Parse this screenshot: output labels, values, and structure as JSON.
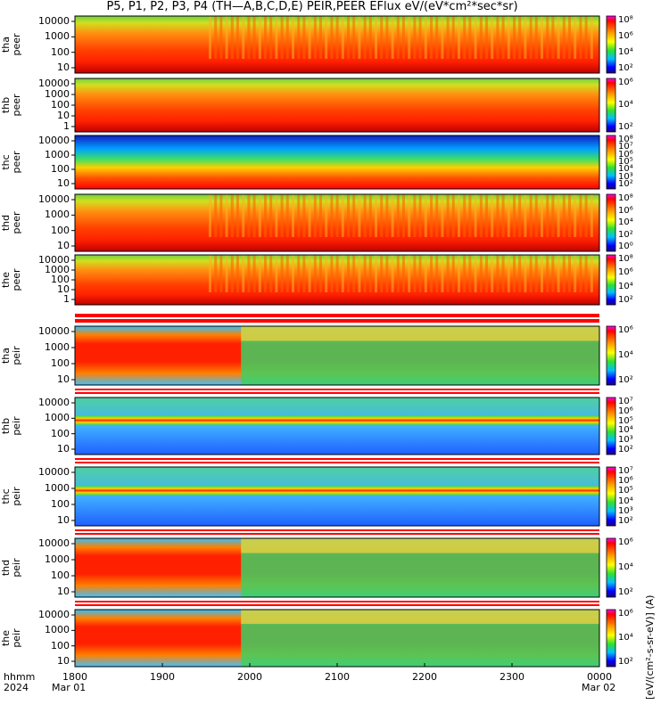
{
  "title": "P5, P1, P2, P3, P4 (TH—A,B,C,D,E) PEIR,PEER EFlux eV/(eV*cm²*sec*sr)",
  "colorbar_units": "[eV/(cm²-s-sr-eV)] (A)",
  "x_axis": {
    "corner_labels": [
      "hhmm",
      "2024"
    ],
    "ticks": [
      "1800",
      "1900",
      "2000",
      "2100",
      "2200",
      "2300",
      "0000"
    ],
    "start_date": "Mar 01",
    "end_date": "Mar 02"
  },
  "chart_data": {
    "type": "heatmap",
    "x_ticks_hhmm": [
      "1800",
      "1900",
      "2000",
      "2100",
      "2200",
      "2300",
      "0000"
    ],
    "y_scale": "log",
    "colorbar_scale": "log",
    "panels": [
      {
        "label": "tha\npeer",
        "yticks": [
          "10000",
          "1000",
          "100",
          "10"
        ],
        "cbar": [
          "10⁸",
          "10⁶",
          "10⁴",
          "10²"
        ]
      },
      {
        "label": "thb\npeer",
        "yticks": [
          "10000",
          "1000",
          "100",
          "10",
          "1"
        ],
        "cbar": [
          "10⁶",
          "10⁴",
          "10²"
        ]
      },
      {
        "label": "thc\npeer",
        "yticks": [
          "10000",
          "1000",
          "100",
          "10"
        ],
        "cbar": [
          "10⁸",
          "10⁷",
          "10⁶",
          "10⁵",
          "10⁴",
          "10³",
          "10²"
        ]
      },
      {
        "label": "thd\npeer",
        "yticks": [
          "10000",
          "1000",
          "100",
          "10"
        ],
        "cbar": [
          "10⁸",
          "10⁶",
          "10⁴",
          "10²",
          "10⁰"
        ]
      },
      {
        "label": "the\npeer",
        "yticks": [
          "10000",
          "1000",
          "100",
          "10",
          "1"
        ],
        "cbar": [
          "10⁸",
          "10⁶",
          "10⁴",
          "10²"
        ]
      },
      {
        "label": "tha\npeir",
        "yticks": [
          "10000",
          "1000",
          "100",
          "10"
        ],
        "cbar": [
          "10⁶",
          "10⁴",
          "10²"
        ]
      },
      {
        "label": "thb\npeir",
        "yticks": [
          "10000",
          "1000",
          "100",
          "10"
        ],
        "cbar": [
          "10⁷",
          "10⁶",
          "10⁵",
          "10⁴",
          "10³",
          "10²"
        ]
      },
      {
        "label": "thc\npeir",
        "yticks": [
          "10000",
          "1000",
          "100",
          "10"
        ],
        "cbar": [
          "10⁷",
          "10⁶",
          "10⁵",
          "10⁴",
          "10³",
          "10²"
        ]
      },
      {
        "label": "thd\npeir",
        "yticks": [
          "10000",
          "1000",
          "100",
          "10"
        ],
        "cbar": [
          "10⁶",
          "10⁴",
          "10²"
        ]
      },
      {
        "label": "the\npeir",
        "yticks": [
          "10000",
          "1000",
          "100",
          "10"
        ],
        "cbar": [
          "10⁶",
          "10⁴",
          "10²"
        ]
      }
    ]
  }
}
